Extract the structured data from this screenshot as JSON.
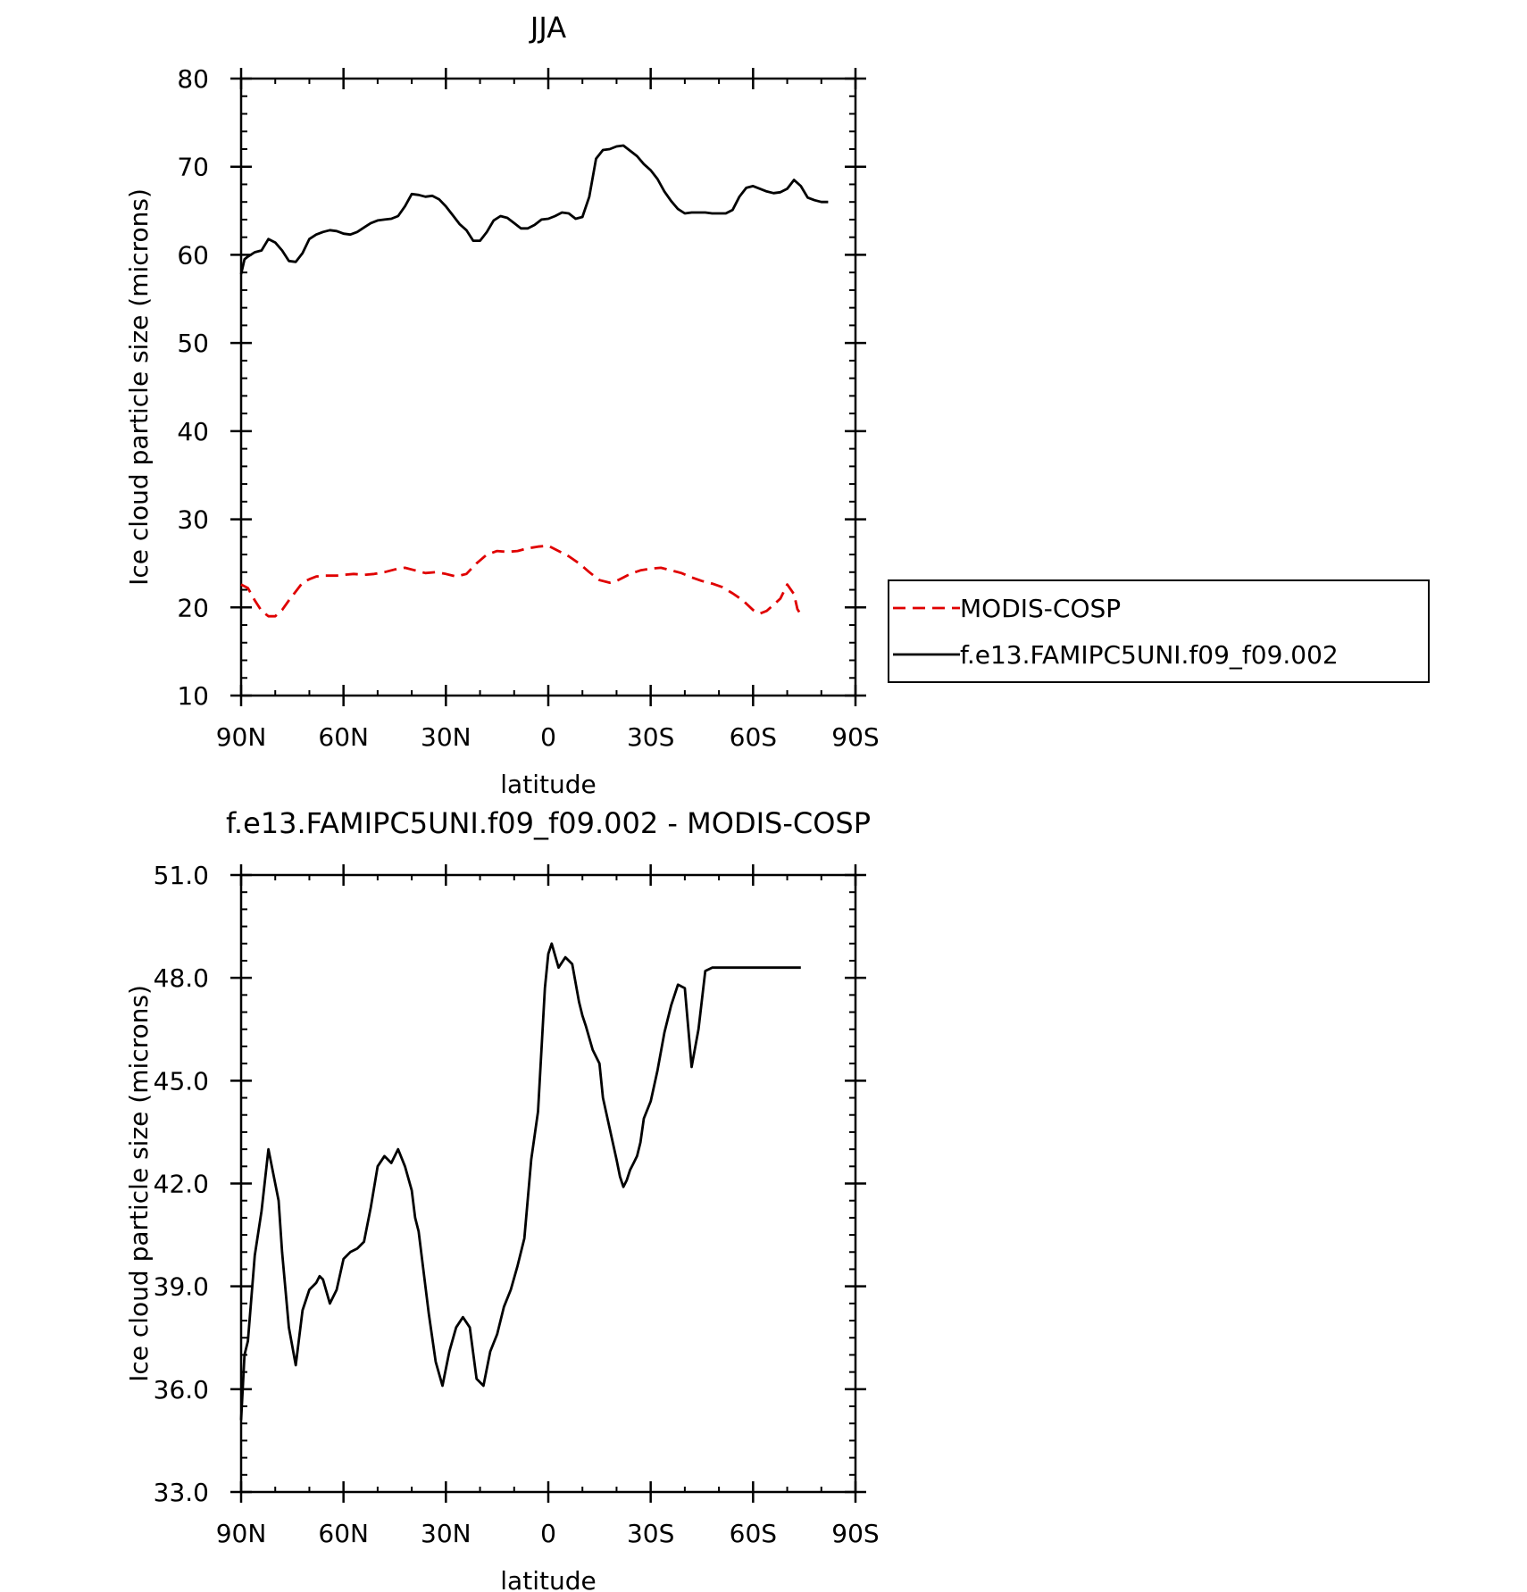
{
  "chart_data": [
    {
      "type": "line",
      "title": "JJA",
      "xlabel": "latitude",
      "ylabel": "Ice cloud particle size (microns)",
      "xlim": [
        90,
        -90
      ],
      "ylim": [
        10,
        80
      ],
      "xticks": [
        {
          "value": 90,
          "label": "90N"
        },
        {
          "value": 60,
          "label": "60N"
        },
        {
          "value": 30,
          "label": "30N"
        },
        {
          "value": 0,
          "label": "0"
        },
        {
          "value": -30,
          "label": "30S"
        },
        {
          "value": -60,
          "label": "60S"
        },
        {
          "value": -90,
          "label": "90S"
        }
      ],
      "yticks": [
        "10",
        "20",
        "30",
        "40",
        "50",
        "60",
        "70",
        "80"
      ],
      "legend": {
        "position": "right"
      },
      "series": [
        {
          "name": "MODIS-COSP",
          "color": "#e00000",
          "dash": "dashed",
          "x": [
            90,
            88,
            86,
            84,
            82,
            80,
            78,
            76,
            74,
            72,
            70,
            68,
            66,
            64,
            62,
            60,
            57,
            54,
            51,
            48,
            45,
            42,
            39,
            36,
            33,
            30,
            27,
            24,
            21,
            18,
            15,
            12,
            9,
            6,
            3,
            0,
            -3,
            -6,
            -9,
            -12,
            -15,
            -18,
            -20,
            -22,
            -24,
            -27,
            -30,
            -33,
            -36,
            -39,
            -42,
            -45,
            -48,
            -51,
            -54,
            -57,
            -60,
            -62,
            -64,
            -66,
            -68,
            -70,
            -72,
            -73,
            -74
          ],
          "y": [
            22.6,
            22.2,
            20.8,
            19.6,
            19.0,
            19.0,
            19.7,
            20.8,
            21.8,
            22.8,
            23.2,
            23.5,
            23.6,
            23.6,
            23.6,
            23.7,
            23.8,
            23.7,
            23.8,
            24.0,
            24.3,
            24.5,
            24.2,
            23.9,
            24.0,
            23.8,
            23.5,
            23.8,
            25.0,
            26.0,
            26.4,
            26.3,
            26.4,
            26.7,
            26.9,
            27.0,
            26.4,
            25.8,
            25.0,
            24.0,
            23.1,
            22.8,
            23.0,
            23.4,
            23.8,
            24.2,
            24.4,
            24.5,
            24.2,
            23.9,
            23.4,
            23.0,
            22.7,
            22.3,
            21.6,
            20.8,
            19.7,
            19.3,
            19.6,
            20.3,
            21.0,
            22.6,
            21.5,
            19.8,
            19.2
          ]
        },
        {
          "name": "f.e13.FAMIPC5UNI.f09_f09.002",
          "color": "#000000",
          "dash": "solid",
          "x": [
            90,
            89,
            88,
            86,
            84,
            82,
            80,
            78,
            76,
            74,
            72,
            70,
            68,
            66,
            64,
            62,
            60,
            58,
            56,
            54,
            52,
            50,
            48,
            46,
            44,
            42,
            40,
            38,
            36,
            34,
            32,
            30,
            28,
            26,
            24,
            22,
            20,
            18,
            16,
            14,
            12,
            10,
            8,
            6,
            4,
            2,
            0,
            -2,
            -4,
            -6,
            -8,
            -10,
            -12,
            -14,
            -16,
            -18,
            -20,
            -22,
            -24,
            -26,
            -28,
            -30,
            -32,
            -34,
            -36,
            -38,
            -40,
            -42,
            -44,
            -46,
            -48,
            -50,
            -52,
            -54,
            -56,
            -58,
            -60,
            -62,
            -64,
            -66,
            -68,
            -70,
            -72,
            -74,
            -76,
            -78,
            -80,
            -81,
            -82
          ],
          "y": [
            57.8,
            59.5,
            59.8,
            60.3,
            60.5,
            61.8,
            61.4,
            60.5,
            59.3,
            59.2,
            60.2,
            61.8,
            62.3,
            62.6,
            62.8,
            62.7,
            62.4,
            62.3,
            62.6,
            63.1,
            63.6,
            63.9,
            64.0,
            64.1,
            64.4,
            65.5,
            66.9,
            66.8,
            66.6,
            66.7,
            66.3,
            65.5,
            64.5,
            63.5,
            62.8,
            61.6,
            61.6,
            62.6,
            63.9,
            64.4,
            64.2,
            63.6,
            63.0,
            63.0,
            63.4,
            64.0,
            64.1,
            64.4,
            64.8,
            64.7,
            64.1,
            64.3,
            66.6,
            70.9,
            71.9,
            72.0,
            72.3,
            72.4,
            71.8,
            71.2,
            70.3,
            69.6,
            68.6,
            67.2,
            66.1,
            65.2,
            64.7,
            64.8,
            64.8,
            64.8,
            64.7,
            64.7,
            64.7,
            65.1,
            66.6,
            67.6,
            67.8,
            67.5,
            67.2,
            67.0,
            67.1,
            67.5,
            68.5,
            67.8,
            66.5,
            66.2,
            66.0,
            66.0,
            66.0
          ]
        }
      ]
    },
    {
      "type": "line",
      "title": "f.e13.FAMIPC5UNI.f09_f09.002 - MODIS-COSP",
      "xlabel": "latitude",
      "ylabel": "Ice cloud particle size (microns)",
      "xlim": [
        90,
        -90
      ],
      "ylim": [
        33,
        51
      ],
      "xticks": [
        {
          "value": 90,
          "label": "90N"
        },
        {
          "value": 60,
          "label": "60N"
        },
        {
          "value": 30,
          "label": "30N"
        },
        {
          "value": 0,
          "label": "0"
        },
        {
          "value": -30,
          "label": "30S"
        },
        {
          "value": -60,
          "label": "60S"
        },
        {
          "value": -90,
          "label": "90S"
        }
      ],
      "yticks": [
        "33.0",
        "36.0",
        "39.0",
        "42.0",
        "45.0",
        "48.0",
        "51.0"
      ],
      "series": [
        {
          "color": "#000000",
          "dash": "solid",
          "x": [
            90,
            89,
            88,
            86,
            84,
            82,
            80,
            79,
            78,
            76,
            74,
            72,
            70,
            68,
            67,
            66,
            64,
            62,
            60,
            58,
            56,
            54,
            52,
            50,
            48,
            46,
            44,
            42,
            40,
            39,
            38,
            37,
            35,
            33,
            31,
            29,
            27,
            25,
            23,
            21,
            19,
            17,
            15,
            13,
            11,
            9,
            7,
            5,
            3,
            1,
            0,
            -1,
            -3,
            -5,
            -7,
            -9,
            -10,
            -11,
            -13,
            -15,
            -16,
            -18,
            -20,
            -21,
            -22,
            -23,
            -24,
            -25,
            -26,
            -27,
            -28,
            -30,
            -32,
            -34,
            -36,
            -38,
            -40,
            -42,
            -44,
            -46,
            -48,
            -50,
            -52,
            -54,
            -56,
            -58,
            -60,
            -62,
            -64,
            -66,
            -68,
            -70,
            -72,
            -73,
            -74
          ],
          "y": [
            35.1,
            37.0,
            37.4,
            39.9,
            41.2,
            43.0,
            42.0,
            41.5,
            40.0,
            37.8,
            36.7,
            38.3,
            38.9,
            39.1,
            39.3,
            39.2,
            38.5,
            38.9,
            39.8,
            40.0,
            40.1,
            40.3,
            41.3,
            42.5,
            42.8,
            42.6,
            43.0,
            42.5,
            41.8,
            41.0,
            40.6,
            39.8,
            38.2,
            36.8,
            36.1,
            37.1,
            37.8,
            38.1,
            37.8,
            36.3,
            36.1,
            37.1,
            37.6,
            38.4,
            38.9,
            39.6,
            40.4,
            42.7,
            44.1,
            47.7,
            48.7,
            49.0,
            48.3,
            48.6,
            48.4,
            47.3,
            46.9,
            46.6,
            45.9,
            45.5,
            44.5,
            43.6,
            42.7,
            42.2,
            41.9,
            42.1,
            42.4,
            42.6,
            42.8,
            43.2,
            43.9,
            44.4,
            45.3,
            46.4,
            47.2,
            47.8,
            47.7,
            45.4,
            46.5,
            48.2,
            48.3,
            48.3,
            48.3,
            48.3,
            48.3,
            48.3,
            48.3,
            48.3,
            48.3,
            48.3,
            48.3,
            48.3,
            48.3,
            48.3,
            48.3
          ]
        }
      ]
    }
  ]
}
